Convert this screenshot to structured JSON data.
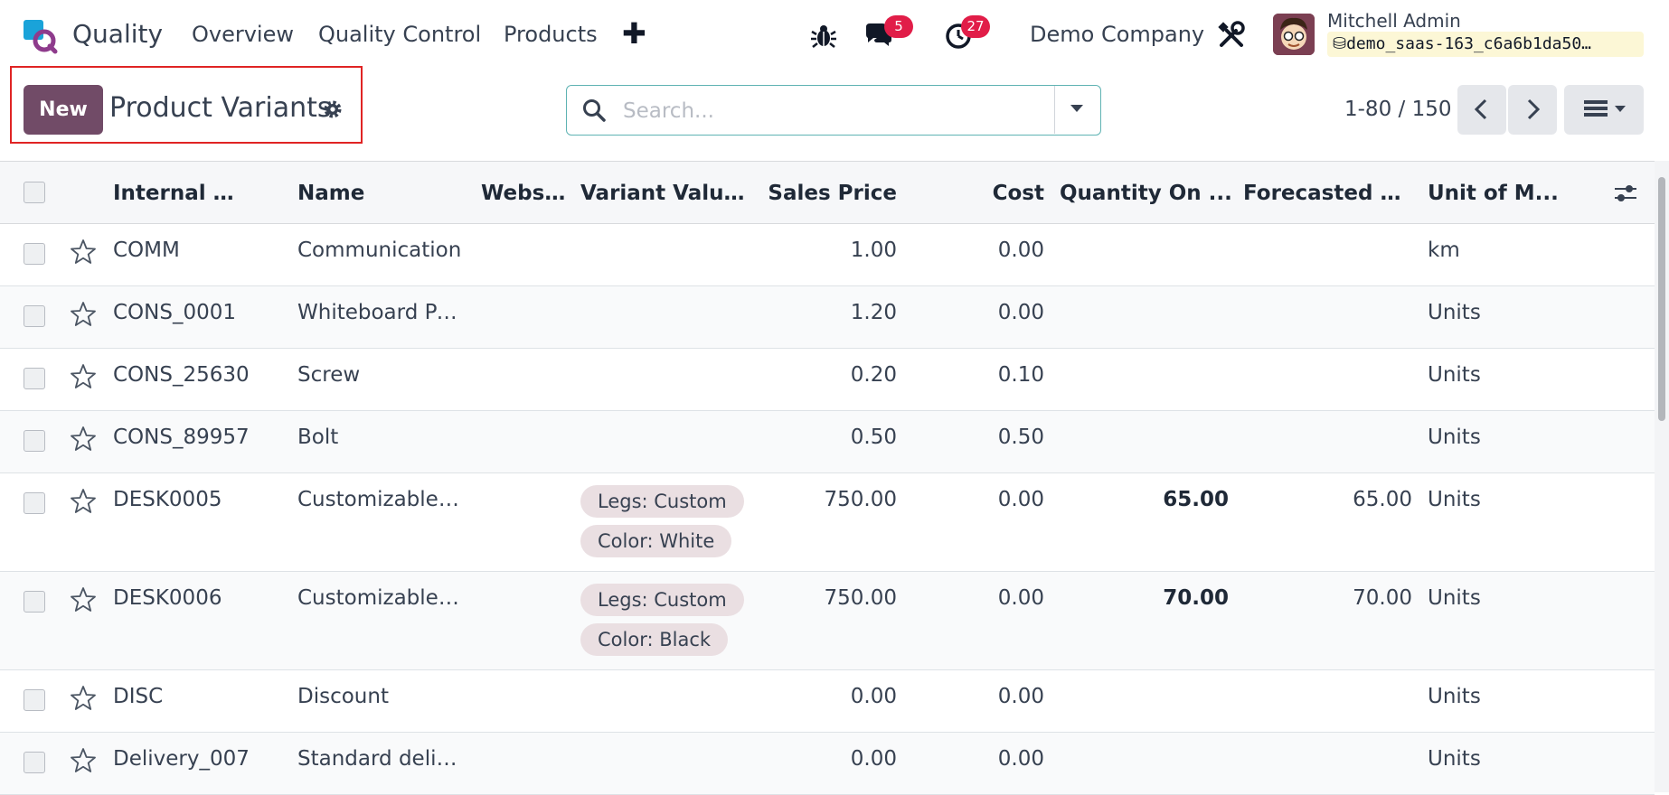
{
  "navbar": {
    "app_name": "Quality",
    "menu": [
      "Overview",
      "Quality Control",
      "Products"
    ],
    "add_icon": "plus-icon",
    "debug_icon": "bug-icon",
    "messages_icon": "chat-icon",
    "messages_badge": "5",
    "activities_icon": "clock-icon",
    "activities_badge": "27",
    "company": "Demo Company",
    "tools_icon": "tools-icon",
    "user_name": "Mitchell Admin",
    "database": "demo_saas-163_c6a6b1da50…",
    "badge_color": "#e11d48"
  },
  "control_panel": {
    "new_button": "New",
    "title": "Product Variants",
    "settings_icon": "gear-icon",
    "search_placeholder": "Search...",
    "pager": "1-80 / 150",
    "accent_color": "#714b67"
  },
  "table": {
    "columns": [
      "Internal R...",
      "Name",
      "Webs...",
      "Variant Values",
      "Sales Price",
      "Cost",
      "Quantity On ...",
      "Forecasted Q...",
      "Unit of M..."
    ],
    "rows": [
      {
        "ref": "COMM",
        "name": "Communication",
        "tags": [],
        "price": "1.00",
        "cost": "0.00",
        "qty": "",
        "forecast": "",
        "uom": "km"
      },
      {
        "ref": "CONS_0001",
        "name": "Whiteboard Pen",
        "tags": [],
        "price": "1.20",
        "cost": "0.00",
        "qty": "",
        "forecast": "",
        "uom": "Units"
      },
      {
        "ref": "CONS_25630",
        "name": "Screw",
        "tags": [],
        "price": "0.20",
        "cost": "0.10",
        "qty": "",
        "forecast": "",
        "uom": "Units"
      },
      {
        "ref": "CONS_89957",
        "name": "Bolt",
        "tags": [],
        "price": "0.50",
        "cost": "0.50",
        "qty": "",
        "forecast": "",
        "uom": "Units"
      },
      {
        "ref": "DESK0005",
        "name": "Customizable …",
        "tags": [
          "Legs: Custom",
          "Color: White"
        ],
        "price": "750.00",
        "cost": "0.00",
        "qty": "65.00",
        "forecast": "65.00",
        "uom": "Units"
      },
      {
        "ref": "DESK0006",
        "name": "Customizable …",
        "tags": [
          "Legs: Custom",
          "Color: Black"
        ],
        "price": "750.00",
        "cost": "0.00",
        "qty": "70.00",
        "forecast": "70.00",
        "uom": "Units"
      },
      {
        "ref": "DISC",
        "name": "Discount",
        "tags": [],
        "price": "0.00",
        "cost": "0.00",
        "qty": "",
        "forecast": "",
        "uom": "Units"
      },
      {
        "ref": "Delivery_007",
        "name": "Standard deliv…",
        "tags": [],
        "price": "0.00",
        "cost": "0.00",
        "qty": "",
        "forecast": "",
        "uom": "Units"
      }
    ]
  }
}
